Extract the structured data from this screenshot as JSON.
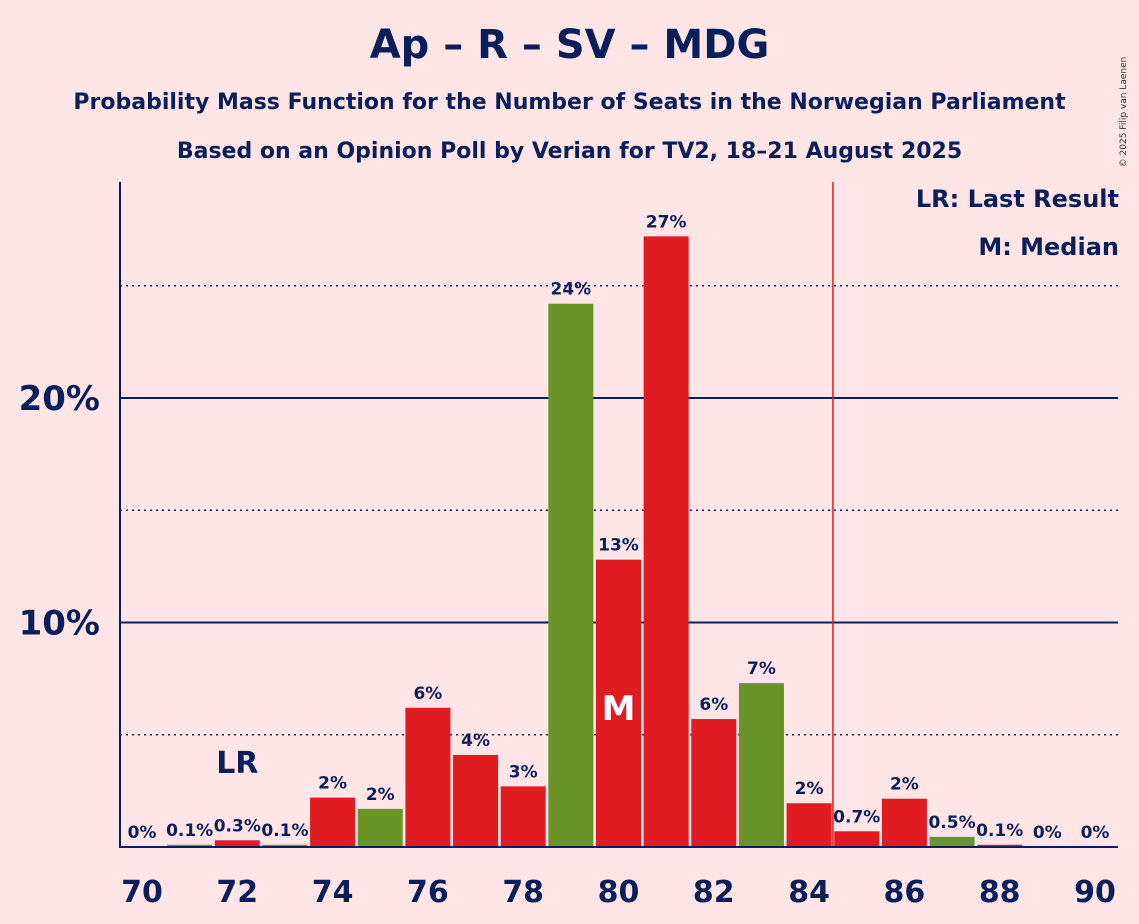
{
  "chart_data": {
    "type": "bar",
    "title": "Ap – R – SV – MDG",
    "subtitle": "Probability Mass Function for the Number of Seats in the Norwegian Parliament",
    "subtitle2": "Based on an Opinion Poll by Verian for TV2, 18–21 August 2025",
    "copyright": "© 2025 Filip van Laenen",
    "legend": {
      "lr": "LR: Last Result",
      "median": "M: Median"
    },
    "x": [
      70,
      71,
      72,
      73,
      74,
      75,
      76,
      77,
      78,
      79,
      80,
      81,
      82,
      83,
      84,
      85,
      86,
      87,
      88,
      89,
      90
    ],
    "values": [
      0,
      0.1,
      0.3,
      0.1,
      2.2,
      1.7,
      6.2,
      4.1,
      2.7,
      24.2,
      12.8,
      27.2,
      5.7,
      7.3,
      1.95,
      0.7,
      2.15,
      0.45,
      0.1,
      0,
      0
    ],
    "labels": [
      "0%",
      "0.1%",
      "0.3%",
      "0.1%",
      "2%",
      "2%",
      "6%",
      "4%",
      "3%",
      "24%",
      "13%",
      "27%",
      "6%",
      "7%",
      "2%",
      "0.7%",
      "2%",
      "0.5%",
      "0.1%",
      "0%",
      "0%"
    ],
    "colors": [
      "#E11B22",
      "#6A9428",
      "#E11B22",
      "#6A9428",
      "#E11B22",
      "#6A9428",
      "#E11B22",
      "#E11B22",
      "#E11B22",
      "#6A9428",
      "#E11B22",
      "#E11B22",
      "#E11B22",
      "#6A9428",
      "#E11B22",
      "#E11B22",
      "#E11B22",
      "#6A9428",
      "#E11B22",
      "#E11B22",
      "#E11B22"
    ],
    "xticks": [
      70,
      72,
      74,
      76,
      78,
      80,
      82,
      84,
      86,
      88,
      90
    ],
    "yticks": [
      {
        "value": 10,
        "label": "10%"
      },
      {
        "value": 20,
        "label": "20%"
      }
    ],
    "ylim": [
      0,
      29.5
    ],
    "last_result": 72,
    "last_result_label": "LR",
    "median": 80,
    "median_label": "M",
    "majority_line": 84.5,
    "majority_color": "#E11B22",
    "axis_color": "#0A1E5C"
  }
}
